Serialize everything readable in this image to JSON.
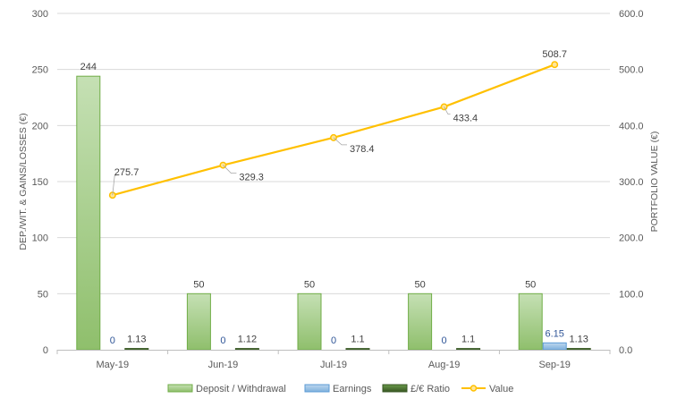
{
  "chart_data": {
    "type": "bar",
    "categories": [
      "May-19",
      "Jun-19",
      "Jul-19",
      "Aug-19",
      "Sep-19"
    ],
    "series": [
      {
        "name": "Deposit / Withdrawal",
        "type": "bar",
        "axis": "left",
        "color": "#a9d18e",
        "values": [
          244,
          50,
          50,
          50,
          50
        ],
        "labels": [
          "244",
          "50",
          "50",
          "50",
          "50"
        ]
      },
      {
        "name": "Earnings",
        "type": "bar",
        "axis": "left",
        "color": "#9dc3e6",
        "values": [
          0,
          0,
          0,
          0,
          6.15
        ],
        "labels": [
          "0",
          "0",
          "0",
          "0",
          "6.15"
        ]
      },
      {
        "name": "£/€ Ratio",
        "type": "bar",
        "axis": "left",
        "color": "#548235",
        "values": [
          1.13,
          1.12,
          1.1,
          1.1,
          1.13
        ],
        "labels": [
          "1.13",
          "1.12",
          "1.1",
          "1.1",
          "1.13"
        ]
      },
      {
        "name": "Value",
        "type": "line",
        "axis": "right",
        "color": "#ffc000",
        "values": [
          275.7,
          329.3,
          378.4,
          433.4,
          508.7
        ],
        "labels": [
          "275.7",
          "329.3",
          "378.4",
          "433.4",
          "508.7"
        ]
      }
    ],
    "ylabel": "DEP./WIT. & GAINS/LOSSES (€)",
    "y2label": "PORTFOLIO VALUE (€)",
    "ylim": [
      0,
      300
    ],
    "y2lim": [
      0,
      600
    ],
    "yticks": [
      "0",
      "50",
      "100",
      "150",
      "200",
      "250",
      "300"
    ],
    "y2ticks": [
      "0.0",
      "100.0",
      "200.0",
      "300.0",
      "400.0",
      "500.0",
      "600.0"
    ],
    "grid": true,
    "legend": "bottom"
  }
}
